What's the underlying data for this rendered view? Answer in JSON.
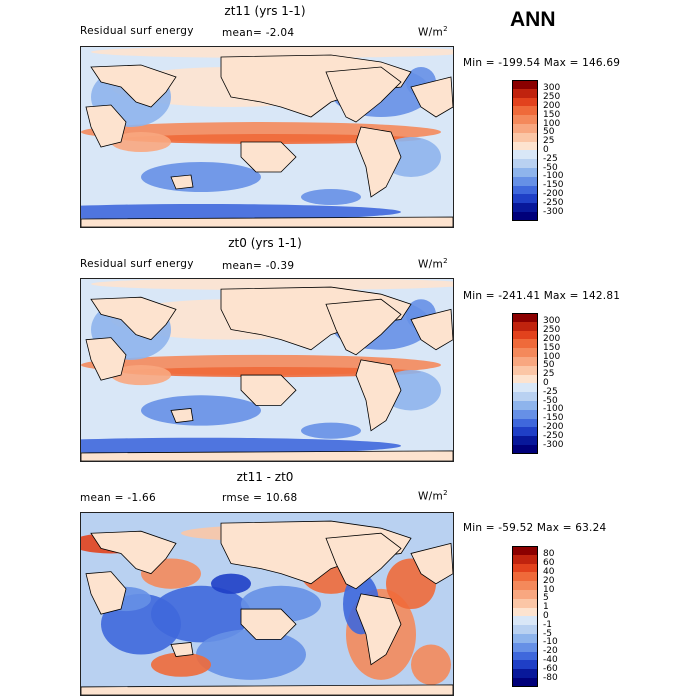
{
  "figure": {
    "season": "ANN",
    "field": "Residual surf energy",
    "units": "W/m",
    "units_exp": "2"
  },
  "chart_data": [
    {
      "type": "heatmap",
      "title": "zt11 (yrs 1-1)",
      "subtitle_left": "Residual surf energy",
      "stat_text": "mean=  -2.04",
      "min_text": "Min = -199.54 Max = 146.69",
      "min": -199.54,
      "max": 146.69,
      "mean": -2.04,
      "levels": [
        "300",
        "250",
        "200",
        "150",
        "100",
        "50",
        "25",
        "0",
        "-25",
        "-50",
        "-100",
        "-150",
        "-200",
        "-250",
        "-300"
      ],
      "colors": [
        "#8b0000",
        "#c0230e",
        "#e2421d",
        "#ef6a3a",
        "#f4895b",
        "#f8a780",
        "#fbc6a6",
        "#fde3cf",
        "#d9e7f7",
        "#b9d1f1",
        "#8eb4ec",
        "#6690e6",
        "#3f68dc",
        "#1f3fc6",
        "#08189a",
        "#00007a"
      ]
    },
    {
      "type": "heatmap",
      "title": "zt0 (yrs 1-1)",
      "subtitle_left": "Residual surf energy",
      "stat_text": "mean=  -0.39",
      "min_text": "Min = -241.41 Max = 142.81",
      "min": -241.41,
      "max": 142.81,
      "mean": -0.39,
      "levels": [
        "300",
        "250",
        "200",
        "150",
        "100",
        "50",
        "25",
        "0",
        "-25",
        "-50",
        "-100",
        "-150",
        "-200",
        "-250",
        "-300"
      ],
      "colors": [
        "#8b0000",
        "#c0230e",
        "#e2421d",
        "#ef6a3a",
        "#f4895b",
        "#f8a780",
        "#fbc6a6",
        "#fde3cf",
        "#d9e7f7",
        "#b9d1f1",
        "#8eb4ec",
        "#6690e6",
        "#3f68dc",
        "#1f3fc6",
        "#08189a",
        "#00007a"
      ]
    },
    {
      "type": "heatmap",
      "title": "zt11 - zt0",
      "subtitle_left": "mean =  -1.66",
      "stat_text": "rmse =  10.68",
      "min_text": "Min = -59.52 Max =  63.24",
      "min": -59.52,
      "max": 63.24,
      "mean": -1.66,
      "rmse": 10.68,
      "levels": [
        "80",
        "60",
        "40",
        "20",
        "10",
        "5",
        "1",
        "0",
        "-1",
        "-5",
        "-10",
        "-20",
        "-40",
        "-60",
        "-80"
      ],
      "colors": [
        "#8b0000",
        "#c0230e",
        "#e2421d",
        "#ef6a3a",
        "#f4895b",
        "#f8a780",
        "#fbc6a6",
        "#fde3cf",
        "#d9e7f7",
        "#b9d1f1",
        "#8eb4ec",
        "#6690e6",
        "#3f68dc",
        "#1f3fc6",
        "#08189a",
        "#00007a"
      ]
    }
  ]
}
